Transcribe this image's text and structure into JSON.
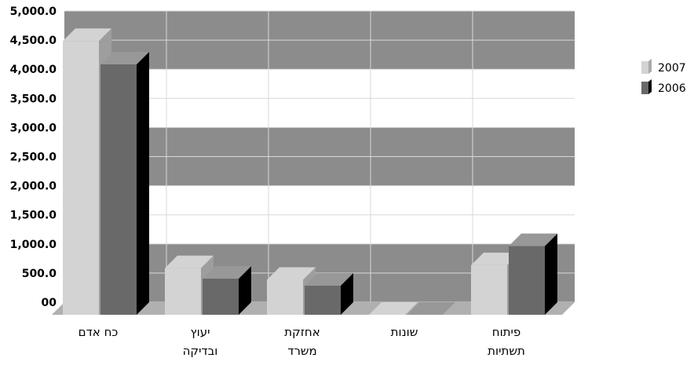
{
  "chart_data": {
    "type": "bar",
    "categories": [
      [
        "כח אדם"
      ],
      [
        "יעוץ",
        "ובדיקה"
      ],
      [
        "אחזקת",
        "משרד"
      ],
      [
        "שונות"
      ],
      [
        "פיתוח",
        "תשתיות"
      ]
    ],
    "series": [
      {
        "name": "2007",
        "values": [
          4700,
          800,
          600,
          0,
          850
        ],
        "color": "#d3d3d3"
      },
      {
        "name": "2006",
        "values": [
          4300,
          620,
          500,
          0,
          1180
        ],
        "color": "#696969"
      }
    ],
    "y_tick_labels": [
      "00",
      "500.0",
      "1,000.0",
      "1,500.0",
      "2,000.0",
      "2,500.0",
      "3,000.0",
      "3,500.0",
      "4,000.0",
      "4,500.0",
      "5,000.0"
    ],
    "ylim": [
      0,
      5000
    ],
    "legend_position": "right",
    "colors": {
      "wall_dark": "#8c8c8c",
      "wall_light": "#ffffff",
      "floor": "#b0b0b0",
      "grid": "#d8d8d8"
    }
  }
}
